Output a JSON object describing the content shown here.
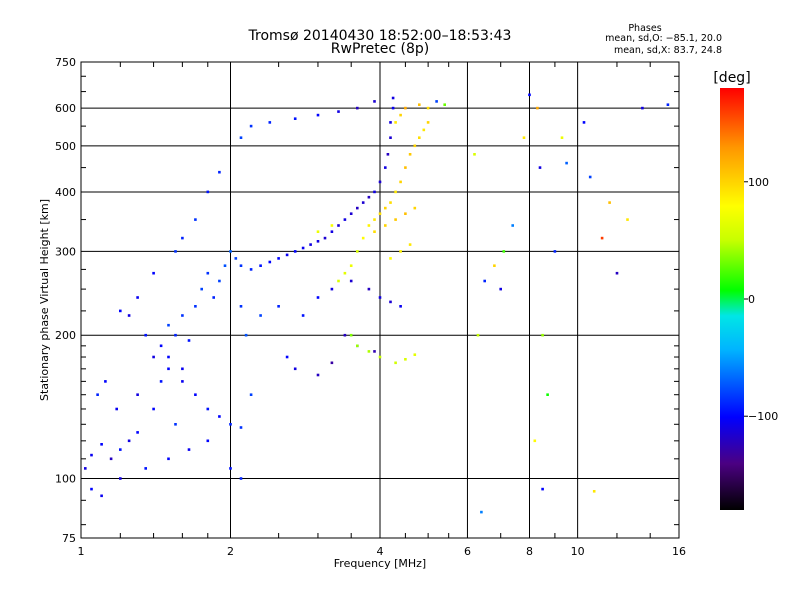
{
  "chart_data": {
    "type": "scatter",
    "title": "Tromsø 20140430 18:52:00–18:53:43",
    "subtitle": "RwPretec (8p)",
    "xlabel": "Frequency [MHz]",
    "ylabel": "Stationary phase Virtual Height [km]",
    "xscale": "log",
    "yscale": "log",
    "xlim": [
      1,
      16
    ],
    "ylim": [
      75,
      750
    ],
    "x_ticks": [
      "1",
      "2",
      "4",
      "6",
      "8",
      "10",
      "16"
    ],
    "y_ticks": [
      "75",
      "100",
      "200",
      "300",
      "400",
      "500",
      "600",
      "750"
    ],
    "grid": true,
    "legend": {
      "title": "Phases",
      "lines": [
        "mean, sd,O: −85.1, 20.0",
        "mean, sd,X: 83.7, 24.8"
      ]
    },
    "colorbar": {
      "label": "[deg]",
      "range": [
        -180,
        180
      ],
      "ticks": [
        "100",
        "0",
        "−100"
      ],
      "colors": [
        "#000000",
        "#4b0082",
        "#0000ff",
        "#00b4ff",
        "#00e6e6",
        "#00ff00",
        "#c8ff00",
        "#ffff00",
        "#ff9600",
        "#ff0000"
      ]
    },
    "series": [
      {
        "values": [
          [
            1.02,
            105,
            -110
          ],
          [
            1.05,
            112,
            -105
          ],
          [
            1.1,
            118,
            -100
          ],
          [
            1.15,
            110,
            -120
          ],
          [
            1.2,
            115,
            -95
          ],
          [
            1.25,
            120,
            -110
          ],
          [
            1.3,
            125,
            -100
          ],
          [
            1.08,
            150,
            -90
          ],
          [
            1.12,
            160,
            -100
          ],
          [
            1.18,
            140,
            -105
          ],
          [
            1.3,
            150,
            -110
          ],
          [
            1.4,
            140,
            -100
          ],
          [
            1.45,
            160,
            -95
          ],
          [
            1.5,
            180,
            -100
          ],
          [
            1.55,
            200,
            -90
          ],
          [
            1.6,
            220,
            -85
          ],
          [
            1.5,
            210,
            -80
          ],
          [
            1.45,
            190,
            -100
          ],
          [
            1.6,
            170,
            -105
          ],
          [
            1.65,
            195,
            -95
          ],
          [
            1.7,
            230,
            -85
          ],
          [
            1.75,
            250,
            -80
          ],
          [
            1.8,
            270,
            -85
          ],
          [
            1.85,
            240,
            -90
          ],
          [
            1.9,
            260,
            -80
          ],
          [
            1.95,
            280,
            -75
          ],
          [
            2.0,
            300,
            -70
          ],
          [
            2.05,
            290,
            -80
          ],
          [
            2.1,
            280,
            -85
          ],
          [
            2.2,
            275,
            -90
          ],
          [
            2.3,
            280,
            -95
          ],
          [
            2.4,
            285,
            -100
          ],
          [
            2.5,
            290,
            -100
          ],
          [
            2.6,
            295,
            -105
          ],
          [
            2.7,
            300,
            -100
          ],
          [
            2.8,
            305,
            -105
          ],
          [
            2.9,
            310,
            -110
          ],
          [
            3.0,
            315,
            -110
          ],
          [
            3.1,
            320,
            -115
          ],
          [
            3.2,
            330,
            -110
          ],
          [
            3.3,
            340,
            -115
          ],
          [
            3.4,
            350,
            -110
          ],
          [
            3.5,
            360,
            -115
          ],
          [
            3.6,
            370,
            -120
          ],
          [
            3.7,
            380,
            -115
          ],
          [
            3.8,
            390,
            -120
          ],
          [
            3.9,
            400,
            -110
          ],
          [
            4.0,
            420,
            -115
          ],
          [
            4.1,
            450,
            -110
          ],
          [
            4.15,
            480,
            -120
          ],
          [
            4.2,
            520,
            -115
          ],
          [
            4.2,
            560,
            -110
          ],
          [
            4.25,
            600,
            -105
          ],
          [
            4.25,
            630,
            -110
          ],
          [
            3.9,
            620,
            -115
          ],
          [
            3.6,
            600,
            -120
          ],
          [
            3.3,
            590,
            -110
          ],
          [
            3.0,
            580,
            -100
          ],
          [
            2.7,
            570,
            -95
          ],
          [
            2.4,
            560,
            -90
          ],
          [
            2.2,
            550,
            -85
          ],
          [
            2.1,
            520,
            -80
          ],
          [
            1.9,
            440,
            -90
          ],
          [
            1.8,
            400,
            -95
          ],
          [
            1.7,
            350,
            -85
          ],
          [
            1.6,
            320,
            -90
          ],
          [
            1.55,
            300,
            -85
          ],
          [
            1.4,
            270,
            -100
          ],
          [
            1.3,
            240,
            -105
          ],
          [
            1.25,
            220,
            -110
          ],
          [
            1.2,
            225,
            -100
          ],
          [
            1.35,
            200,
            -95
          ],
          [
            1.4,
            180,
            -110
          ],
          [
            1.5,
            170,
            -100
          ],
          [
            1.6,
            160,
            -105
          ],
          [
            1.7,
            150,
            -100
          ],
          [
            1.8,
            140,
            -95
          ],
          [
            1.9,
            135,
            -100
          ],
          [
            2.0,
            130,
            -90
          ],
          [
            2.1,
            128,
            -85
          ],
          [
            2.2,
            150,
            -80
          ],
          [
            2.15,
            200,
            -75
          ],
          [
            2.1,
            230,
            -85
          ],
          [
            2.3,
            220,
            -80
          ],
          [
            2.5,
            230,
            -90
          ],
          [
            2.8,
            220,
            -95
          ],
          [
            3.0,
            240,
            -100
          ],
          [
            3.2,
            250,
            -110
          ],
          [
            3.5,
            260,
            -115
          ],
          [
            3.8,
            250,
            -120
          ],
          [
            4.0,
            240,
            -110
          ],
          [
            4.2,
            235,
            -115
          ],
          [
            4.4,
            230,
            -105
          ],
          [
            3.4,
            200,
            -120
          ],
          [
            3.6,
            190,
            -115
          ],
          [
            3.9,
            185,
            -125
          ],
          [
            3.2,
            175,
            -130
          ],
          [
            3.0,
            165,
            -120
          ],
          [
            2.7,
            170,
            -110
          ],
          [
            2.6,
            180,
            -100
          ],
          [
            1.05,
            95,
            -100
          ],
          [
            1.1,
            92,
            -105
          ],
          [
            1.2,
            100,
            -110
          ],
          [
            1.35,
            105,
            -95
          ],
          [
            1.5,
            110,
            -100
          ],
          [
            1.65,
            115,
            -105
          ],
          [
            1.8,
            120,
            -100
          ],
          [
            2.0,
            105,
            -95
          ],
          [
            2.1,
            100,
            -90
          ],
          [
            1.55,
            130,
            -85
          ]
        ]
      },
      {
        "values": [
          [
            3.6,
            300,
            60
          ],
          [
            3.7,
            320,
            80
          ],
          [
            3.8,
            340,
            85
          ],
          [
            3.9,
            350,
            90
          ],
          [
            4.0,
            360,
            95
          ],
          [
            4.1,
            370,
            100
          ],
          [
            4.2,
            380,
            95
          ],
          [
            4.3,
            400,
            90
          ],
          [
            4.4,
            420,
            100
          ],
          [
            4.5,
            450,
            110
          ],
          [
            4.6,
            480,
            105
          ],
          [
            4.7,
            500,
            100
          ],
          [
            4.8,
            520,
            95
          ],
          [
            4.9,
            540,
            90
          ],
          [
            5.0,
            560,
            100
          ],
          [
            5.0,
            600,
            95
          ],
          [
            4.8,
            610,
            110
          ],
          [
            4.5,
            600,
            120
          ],
          [
            4.4,
            580,
            100
          ],
          [
            4.3,
            560,
            90
          ],
          [
            3.5,
            280,
            70
          ],
          [
            3.4,
            270,
            65
          ],
          [
            3.3,
            260,
            60
          ],
          [
            3.6,
            190,
            40
          ],
          [
            3.8,
            185,
            45
          ],
          [
            4.0,
            180,
            50
          ],
          [
            4.3,
            175,
            55
          ],
          [
            4.5,
            178,
            60
          ],
          [
            4.7,
            182,
            65
          ],
          [
            3.5,
            200,
            35
          ],
          [
            3.2,
            340,
            75
          ],
          [
            3.0,
            330,
            70
          ],
          [
            4.2,
            290,
            80
          ],
          [
            4.4,
            300,
            85
          ],
          [
            4.6,
            310,
            90
          ],
          [
            3.9,
            330,
            95
          ],
          [
            4.1,
            340,
            100
          ],
          [
            4.3,
            350,
            105
          ],
          [
            4.5,
            360,
            110
          ],
          [
            4.7,
            370,
            100
          ]
        ]
      },
      {
        "values": [
          [
            5.2,
            620,
            -80
          ],
          [
            5.4,
            610,
            30
          ],
          [
            6.3,
            200,
            50
          ],
          [
            6.5,
            260,
            -90
          ],
          [
            6.8,
            280,
            100
          ],
          [
            7.1,
            300,
            20
          ],
          [
            7.4,
            340,
            -60
          ],
          [
            7.8,
            520,
            90
          ],
          [
            8.0,
            640,
            -100
          ],
          [
            8.3,
            600,
            120
          ],
          [
            8.4,
            450,
            -110
          ],
          [
            8.5,
            200,
            40
          ],
          [
            8.7,
            150,
            10
          ],
          [
            9.0,
            300,
            -90
          ],
          [
            9.3,
            520,
            70
          ],
          [
            10.3,
            560,
            -100
          ],
          [
            10.6,
            430,
            -80
          ],
          [
            11.2,
            320,
            160
          ],
          [
            12.0,
            270,
            -120
          ],
          [
            12.6,
            350,
            90
          ],
          [
            13.5,
            600,
            -110
          ],
          [
            15.2,
            610,
            -90
          ],
          [
            6.4,
            85,
            -60
          ],
          [
            8.5,
            95,
            -100
          ],
          [
            10.8,
            94,
            90
          ],
          [
            6.2,
            480,
            60
          ],
          [
            7.0,
            250,
            -110
          ],
          [
            8.2,
            120,
            80
          ],
          [
            9.5,
            460,
            -70
          ],
          [
            11.6,
            380,
            110
          ]
        ]
      }
    ]
  }
}
